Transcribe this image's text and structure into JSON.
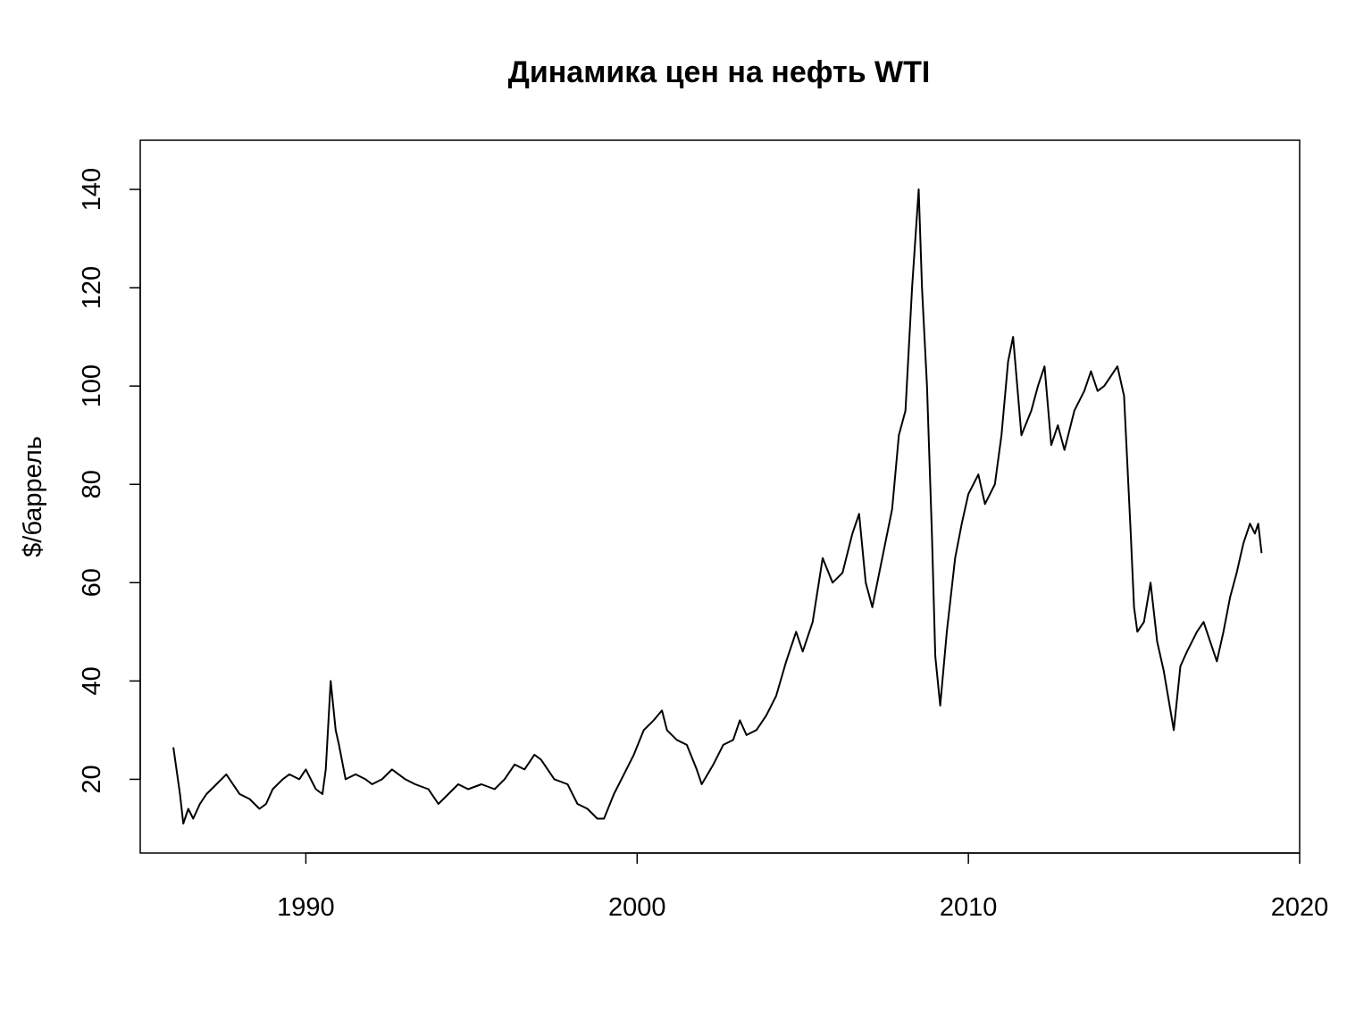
{
  "chart_data": {
    "type": "line",
    "title": "Динамика цен на нефть WTI",
    "xlabel": "",
    "ylabel": "$/баррель",
    "xlim": [
      1985,
      2020
    ],
    "ylim": [
      5,
      150
    ],
    "xticks": [
      1990,
      2000,
      2010,
      2020
    ],
    "yticks": [
      20,
      40,
      60,
      80,
      100,
      120,
      140
    ],
    "grid": false,
    "line_color": "#000000",
    "series": [
      {
        "x": [
          1986.0,
          1986.2,
          1986.3,
          1986.45,
          1986.6,
          1986.8,
          1987.0,
          1987.3,
          1987.6,
          1987.8,
          1988.0,
          1988.3,
          1988.6,
          1988.8,
          1989.0,
          1989.3,
          1989.5,
          1989.8,
          1990.0,
          1990.3,
          1990.5,
          1990.6,
          1990.75,
          1990.9,
          1991.0,
          1991.2,
          1991.5,
          1991.8,
          1992.0,
          1992.3,
          1992.6,
          1993.0,
          1993.3,
          1993.7,
          1994.0,
          1994.3,
          1994.6,
          1994.9,
          1995.3,
          1995.7,
          1996.0,
          1996.3,
          1996.6,
          1996.9,
          1997.1,
          1997.5,
          1997.9,
          1998.2,
          1998.5,
          1998.8,
          1999.0,
          1999.3,
          1999.6,
          1999.9,
          2000.2,
          2000.5,
          2000.75,
          2000.9,
          2001.2,
          2001.5,
          2001.8,
          2001.95,
          2002.3,
          2002.6,
          2002.9,
          2003.1,
          2003.3,
          2003.6,
          2003.9,
          2004.2,
          2004.5,
          2004.8,
          2005.0,
          2005.3,
          2005.6,
          2005.9,
          2006.2,
          2006.5,
          2006.7,
          2006.9,
          2007.1,
          2007.4,
          2007.7,
          2007.9,
          2008.1,
          2008.3,
          2008.5,
          2008.6,
          2008.75,
          2008.9,
          2009.0,
          2009.15,
          2009.35,
          2009.6,
          2009.8,
          2010.0,
          2010.3,
          2010.5,
          2010.8,
          2011.0,
          2011.2,
          2011.35,
          2011.6,
          2011.9,
          2012.1,
          2012.3,
          2012.5,
          2012.7,
          2012.9,
          2013.2,
          2013.5,
          2013.7,
          2013.9,
          2014.1,
          2014.3,
          2014.5,
          2014.7,
          2014.9,
          2015.0,
          2015.1,
          2015.3,
          2015.5,
          2015.7,
          2015.9,
          2016.05,
          2016.2,
          2016.4,
          2016.6,
          2016.9,
          2017.1,
          2017.3,
          2017.5,
          2017.7,
          2017.9,
          2018.1,
          2018.3,
          2018.5,
          2018.65,
          2018.75,
          2018.85
        ],
        "y": [
          26.5,
          17,
          11,
          14,
          12,
          15,
          17,
          19,
          21,
          19,
          17,
          16,
          14,
          15,
          18,
          20,
          21,
          20,
          22,
          18,
          17,
          22,
          40,
          30,
          27,
          20,
          21,
          20,
          19,
          20,
          22,
          20,
          19,
          18,
          15,
          17,
          19,
          18,
          19,
          18,
          20,
          23,
          22,
          25,
          24,
          20,
          19,
          15,
          14,
          12,
          12,
          17,
          21,
          25,
          30,
          32,
          34,
          30,
          28,
          27,
          22,
          19,
          23,
          27,
          28,
          32,
          29,
          30,
          33,
          37,
          44,
          50,
          46,
          52,
          65,
          60,
          62,
          70,
          74,
          60,
          55,
          65,
          75,
          90,
          95,
          120,
          140,
          120,
          100,
          70,
          45,
          35,
          50,
          65,
          72,
          78,
          82,
          76,
          80,
          90,
          105,
          110,
          90,
          95,
          100,
          104,
          88,
          92,
          87,
          95,
          99,
          103,
          99,
          100,
          102,
          104,
          98,
          70,
          55,
          50,
          52,
          60,
          48,
          42,
          36,
          30,
          43,
          46,
          50,
          52,
          48,
          44,
          50,
          57,
          62,
          68,
          72,
          70,
          72,
          66
        ]
      }
    ]
  }
}
